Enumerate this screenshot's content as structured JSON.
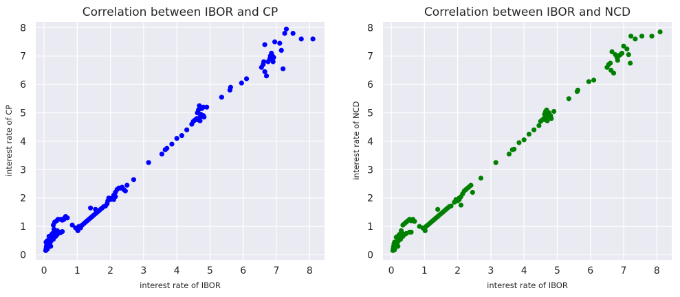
{
  "chart_data": [
    {
      "type": "scatter",
      "title": "Correlation between IBOR and CP",
      "xlabel": "interest rate of IBOR",
      "ylabel": "interest rate of CP",
      "xlim": [
        -0.25,
        8.45
      ],
      "ylim": [
        -0.18,
        8.2
      ],
      "xticks": [
        0,
        1,
        2,
        3,
        4,
        5,
        6,
        7,
        8
      ],
      "yticks": [
        0,
        1,
        2,
        3,
        4,
        5,
        6,
        7,
        8
      ],
      "grid": true,
      "background": "#eaeaf2",
      "color": "#0000ff",
      "points": [
        [
          0.05,
          0.15
        ],
        [
          0.06,
          0.22
        ],
        [
          0.07,
          0.3
        ],
        [
          0.08,
          0.38
        ],
        [
          0.06,
          0.45
        ],
        [
          0.1,
          0.2
        ],
        [
          0.12,
          0.28
        ],
        [
          0.14,
          0.35
        ],
        [
          0.1,
          0.5
        ],
        [
          0.15,
          0.45
        ],
        [
          0.18,
          0.4
        ],
        [
          0.2,
          0.3
        ],
        [
          0.22,
          0.5
        ],
        [
          0.25,
          0.6
        ],
        [
          0.2,
          0.62
        ],
        [
          0.28,
          0.55
        ],
        [
          0.3,
          0.7
        ],
        [
          0.32,
          0.8
        ],
        [
          0.35,
          0.65
        ],
        [
          0.25,
          0.75
        ],
        [
          0.3,
          0.9
        ],
        [
          0.28,
          1.05
        ],
        [
          0.32,
          1.15
        ],
        [
          0.38,
          1.2
        ],
        [
          0.4,
          0.85
        ],
        [
          0.45,
          0.8
        ],
        [
          0.42,
          1.25
        ],
        [
          0.5,
          1.25
        ],
        [
          0.55,
          1.22
        ],
        [
          0.6,
          1.25
        ],
        [
          0.62,
          1.3
        ],
        [
          0.65,
          1.35
        ],
        [
          0.7,
          1.3
        ],
        [
          0.5,
          0.78
        ],
        [
          0.55,
          0.82
        ],
        [
          0.35,
          0.75
        ],
        [
          0.4,
          0.72
        ],
        [
          0.22,
          0.7
        ],
        [
          0.15,
          0.65
        ],
        [
          0.18,
          0.55
        ],
        [
          0.85,
          1.05
        ],
        [
          0.95,
          0.95
        ],
        [
          1.0,
          0.9
        ],
        [
          1.02,
          0.85
        ],
        [
          1.05,
          1.0
        ],
        [
          1.1,
          0.95
        ],
        [
          1.15,
          1.05
        ],
        [
          1.2,
          1.1
        ],
        [
          1.25,
          1.15
        ],
        [
          1.3,
          1.2
        ],
        [
          1.35,
          1.25
        ],
        [
          1.4,
          1.3
        ],
        [
          1.45,
          1.35
        ],
        [
          1.5,
          1.4
        ],
        [
          1.55,
          1.45
        ],
        [
          1.6,
          1.5
        ],
        [
          1.65,
          1.55
        ],
        [
          1.7,
          1.6
        ],
        [
          1.75,
          1.65
        ],
        [
          1.8,
          1.7
        ],
        [
          1.85,
          1.72
        ],
        [
          1.4,
          1.65
        ],
        [
          1.55,
          1.6
        ],
        [
          1.9,
          1.8
        ],
        [
          1.92,
          1.9
        ],
        [
          1.95,
          2.0
        ],
        [
          2.0,
          1.95
        ],
        [
          2.05,
          2.0
        ],
        [
          2.1,
          2.1
        ],
        [
          2.15,
          2.2
        ],
        [
          2.2,
          2.3
        ],
        [
          2.25,
          2.35
        ],
        [
          2.3,
          2.35
        ],
        [
          2.35,
          2.38
        ],
        [
          2.4,
          2.3
        ],
        [
          2.45,
          2.25
        ],
        [
          2.5,
          2.45
        ],
        [
          2.1,
          1.95
        ],
        [
          2.15,
          2.05
        ],
        [
          2.7,
          2.65
        ],
        [
          3.15,
          3.25
        ],
        [
          3.55,
          3.55
        ],
        [
          3.65,
          3.7
        ],
        [
          3.7,
          3.75
        ],
        [
          3.85,
          3.9
        ],
        [
          4.0,
          4.1
        ],
        [
          4.15,
          4.2
        ],
        [
          4.3,
          4.4
        ],
        [
          4.45,
          4.6
        ],
        [
          4.5,
          4.7
        ],
        [
          4.55,
          4.75
        ],
        [
          4.6,
          4.8
        ],
        [
          4.62,
          5.0
        ],
        [
          4.65,
          5.1
        ],
        [
          4.68,
          5.25
        ],
        [
          4.7,
          4.85
        ],
        [
          4.72,
          4.95
        ],
        [
          4.75,
          5.15
        ],
        [
          4.8,
          4.9
        ],
        [
          4.82,
          4.85
        ],
        [
          4.65,
          4.75
        ],
        [
          4.7,
          4.72
        ],
        [
          4.8,
          5.2
        ],
        [
          4.9,
          5.2
        ],
        [
          5.35,
          5.55
        ],
        [
          5.6,
          5.8
        ],
        [
          5.62,
          5.9
        ],
        [
          5.95,
          6.05
        ],
        [
          6.1,
          6.2
        ],
        [
          6.55,
          6.6
        ],
        [
          6.6,
          6.7
        ],
        [
          6.62,
          6.8
        ],
        [
          6.65,
          6.45
        ],
        [
          6.7,
          6.3
        ],
        [
          6.65,
          7.4
        ],
        [
          6.75,
          6.8
        ],
        [
          6.8,
          6.9
        ],
        [
          6.82,
          7.0
        ],
        [
          6.85,
          7.1
        ],
        [
          6.9,
          6.8
        ],
        [
          6.88,
          7.0
        ],
        [
          6.92,
          6.95
        ],
        [
          6.95,
          7.5
        ],
        [
          7.1,
          7.45
        ],
        [
          7.15,
          7.2
        ],
        [
          7.2,
          6.55
        ],
        [
          7.25,
          7.8
        ],
        [
          7.3,
          7.95
        ],
        [
          7.5,
          7.8
        ],
        [
          7.75,
          7.6
        ],
        [
          8.1,
          7.6
        ]
      ]
    },
    {
      "type": "scatter",
      "title": "Correlation between IBOR and NCD",
      "xlabel": "interest rate of IBOR",
      "ylabel": "interest rate of NCD",
      "xlim": [
        -0.25,
        8.45
      ],
      "ylim": [
        -0.18,
        8.2
      ],
      "xticks": [
        0,
        1,
        2,
        3,
        4,
        5,
        6,
        7,
        8
      ],
      "yticks": [
        0,
        1,
        2,
        3,
        4,
        5,
        6,
        7,
        8
      ],
      "grid": true,
      "background": "#eaeaf2",
      "color": "#008000",
      "points": [
        [
          0.05,
          0.15
        ],
        [
          0.06,
          0.22
        ],
        [
          0.07,
          0.3
        ],
        [
          0.08,
          0.38
        ],
        [
          0.1,
          0.18
        ],
        [
          0.12,
          0.28
        ],
        [
          0.14,
          0.35
        ],
        [
          0.1,
          0.45
        ],
        [
          0.15,
          0.42
        ],
        [
          0.18,
          0.4
        ],
        [
          0.2,
          0.3
        ],
        [
          0.22,
          0.5
        ],
        [
          0.25,
          0.6
        ],
        [
          0.2,
          0.55
        ],
        [
          0.28,
          0.55
        ],
        [
          0.3,
          0.7
        ],
        [
          0.32,
          0.78
        ],
        [
          0.35,
          0.65
        ],
        [
          0.25,
          0.72
        ],
        [
          0.3,
          0.85
        ],
        [
          0.35,
          1.05
        ],
        [
          0.4,
          1.1
        ],
        [
          0.45,
          1.15
        ],
        [
          0.5,
          1.2
        ],
        [
          0.55,
          1.25
        ],
        [
          0.6,
          1.2
        ],
        [
          0.65,
          1.25
        ],
        [
          0.7,
          1.18
        ],
        [
          0.45,
          0.75
        ],
        [
          0.55,
          0.8
        ],
        [
          0.4,
          0.72
        ],
        [
          0.22,
          0.68
        ],
        [
          0.15,
          0.62
        ],
        [
          0.6,
          0.8
        ],
        [
          0.85,
          1.0
        ],
        [
          0.95,
          0.95
        ],
        [
          1.0,
          0.9
        ],
        [
          1.02,
          0.85
        ],
        [
          1.05,
          1.0
        ],
        [
          1.1,
          1.05
        ],
        [
          1.15,
          1.1
        ],
        [
          1.2,
          1.15
        ],
        [
          1.25,
          1.2
        ],
        [
          1.3,
          1.25
        ],
        [
          1.35,
          1.3
        ],
        [
          1.4,
          1.35
        ],
        [
          1.45,
          1.4
        ],
        [
          1.5,
          1.45
        ],
        [
          1.55,
          1.5
        ],
        [
          1.6,
          1.55
        ],
        [
          1.65,
          1.6
        ],
        [
          1.7,
          1.65
        ],
        [
          1.75,
          1.7
        ],
        [
          1.8,
          1.72
        ],
        [
          1.4,
          1.6
        ],
        [
          1.9,
          1.85
        ],
        [
          1.95,
          1.95
        ],
        [
          2.0,
          1.9
        ],
        [
          2.05,
          2.0
        ],
        [
          2.1,
          2.05
        ],
        [
          2.15,
          2.15
        ],
        [
          2.2,
          2.25
        ],
        [
          2.25,
          2.3
        ],
        [
          2.3,
          2.35
        ],
        [
          2.35,
          2.4
        ],
        [
          2.4,
          2.45
        ],
        [
          2.45,
          2.2
        ],
        [
          2.1,
          1.75
        ],
        [
          2.05,
          1.95
        ],
        [
          2.7,
          2.7
        ],
        [
          3.15,
          3.25
        ],
        [
          3.55,
          3.55
        ],
        [
          3.65,
          3.7
        ],
        [
          3.7,
          3.72
        ],
        [
          3.85,
          3.95
        ],
        [
          4.0,
          4.05
        ],
        [
          4.15,
          4.25
        ],
        [
          4.3,
          4.4
        ],
        [
          4.45,
          4.55
        ],
        [
          4.5,
          4.7
        ],
        [
          4.55,
          4.75
        ],
        [
          4.6,
          4.8
        ],
        [
          4.62,
          4.95
        ],
        [
          4.65,
          5.05
        ],
        [
          4.68,
          5.1
        ],
        [
          4.7,
          4.85
        ],
        [
          4.72,
          4.95
        ],
        [
          4.75,
          5.0
        ],
        [
          4.8,
          4.9
        ],
        [
          4.82,
          4.8
        ],
        [
          4.65,
          4.75
        ],
        [
          4.7,
          4.72
        ],
        [
          4.9,
          5.05
        ],
        [
          5.35,
          5.5
        ],
        [
          5.6,
          5.75
        ],
        [
          5.62,
          5.8
        ],
        [
          5.95,
          6.1
        ],
        [
          6.1,
          6.15
        ],
        [
          6.5,
          6.6
        ],
        [
          6.55,
          6.7
        ],
        [
          6.6,
          6.75
        ],
        [
          6.62,
          6.5
        ],
        [
          6.7,
          6.4
        ],
        [
          6.65,
          7.15
        ],
        [
          6.75,
          7.05
        ],
        [
          6.8,
          6.95
        ],
        [
          6.82,
          6.85
        ],
        [
          6.85,
          7.0
        ],
        [
          6.9,
          7.05
        ],
        [
          6.95,
          7.1
        ],
        [
          7.0,
          7.35
        ],
        [
          7.1,
          7.25
        ],
        [
          7.15,
          7.05
        ],
        [
          7.2,
          6.75
        ],
        [
          7.22,
          7.7
        ],
        [
          7.35,
          7.6
        ],
        [
          7.55,
          7.7
        ],
        [
          7.85,
          7.7
        ],
        [
          8.1,
          7.85
        ]
      ]
    }
  ]
}
